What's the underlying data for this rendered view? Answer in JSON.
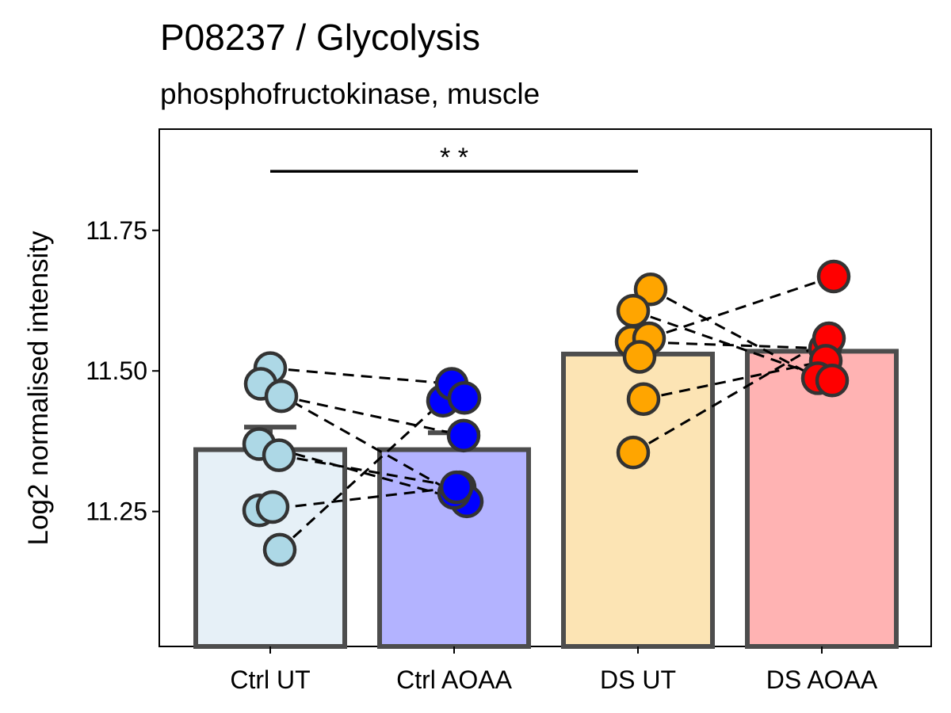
{
  "chart_data": {
    "type": "bar",
    "title": "P08237 / Glycolysis",
    "subtitle": "phosphofructokinase, muscle",
    "xlabel": "",
    "ylabel": "Log2 normalised intensity",
    "ylim": [
      11.01,
      11.93
    ],
    "yticks": [
      11.25,
      11.5,
      11.75
    ],
    "ytick_labels": [
      "11.25",
      "11.50",
      "11.75"
    ],
    "grid": false,
    "categories": [
      "Ctrl UT",
      "Ctrl AOAA",
      "DS UT",
      "DS AOAA"
    ],
    "values": [
      11.36,
      11.36,
      11.53,
      11.535
    ],
    "error_upper": [
      11.4,
      11.39,
      null,
      null
    ],
    "bar_colors": [
      "#e6f0f7",
      "#b3b3ff",
      "#fce4b4",
      "#ffb3b3"
    ],
    "point_colors": [
      "#add8e6",
      "#0000ff",
      "#ffa500",
      "#ff0000"
    ],
    "points": [
      [
        {
          "x": 0.0,
          "y": 11.505
        },
        {
          "x": -0.12,
          "y": 11.477
        },
        {
          "x": 0.14,
          "y": 11.455
        },
        {
          "x": -0.14,
          "y": 11.37
        },
        {
          "x": 0.11,
          "y": 11.35
        },
        {
          "x": -0.14,
          "y": 11.252
        },
        {
          "x": 0.03,
          "y": 11.258
        },
        {
          "x": 0.12,
          "y": 11.182
        }
      ],
      [
        {
          "x": -0.14,
          "y": 11.447
        },
        {
          "x": -0.03,
          "y": 11.477
        },
        {
          "x": 0.13,
          "y": 11.452
        },
        {
          "x": 0.12,
          "y": 11.385
        },
        {
          "x": 0.07,
          "y": 11.293
        },
        {
          "x": 0.16,
          "y": 11.268
        },
        {
          "x": 0.0,
          "y": 11.283
        },
        {
          "x": 0.03,
          "y": 11.293
        }
      ],
      [
        {
          "x": 0.16,
          "y": 11.645
        },
        {
          "x": -0.06,
          "y": 11.607
        },
        {
          "x": -0.08,
          "y": 11.552
        },
        {
          "x": 0.14,
          "y": 11.558
        },
        {
          "x": 0.02,
          "y": 11.525
        },
        {
          "x": 0.07,
          "y": 11.45
        },
        {
          "x": -0.06,
          "y": 11.355
        }
      ],
      [
        {
          "x": 0.15,
          "y": 11.668
        },
        {
          "x": 0.04,
          "y": 11.54
        },
        {
          "x": 0.09,
          "y": 11.558
        },
        {
          "x": 0.05,
          "y": 11.518
        },
        {
          "x": -0.05,
          "y": 11.487
        },
        {
          "x": 0.13,
          "y": 11.483
        }
      ]
    ],
    "paired_lines": [
      [
        [
          0,
          0
        ],
        [
          1,
          1
        ]
      ],
      [
        [
          0,
          1
        ],
        [
          1,
          6
        ]
      ],
      [
        [
          0,
          2
        ],
        [
          1,
          3
        ]
      ],
      [
        [
          0,
          3
        ],
        [
          1,
          5
        ]
      ],
      [
        [
          0,
          4
        ],
        [
          1,
          4
        ]
      ],
      [
        [
          0,
          5
        ],
        [
          1,
          7
        ]
      ],
      [
        [
          0,
          7
        ],
        [
          1,
          0
        ]
      ],
      [
        [
          2,
          0
        ],
        [
          3,
          4
        ]
      ],
      [
        [
          2,
          1
        ],
        [
          3,
          5
        ]
      ],
      [
        [
          2,
          2
        ],
        [
          3,
          1
        ]
      ],
      [
        [
          2,
          3
        ],
        [
          3,
          0
        ]
      ],
      [
        [
          2,
          5
        ],
        [
          3,
          3
        ]
      ],
      [
        [
          2,
          6
        ],
        [
          3,
          2
        ]
      ]
    ],
    "significance": [
      {
        "from": "Ctrl UT",
        "to": "DS UT",
        "label": "* *",
        "y": 11.855
      }
    ]
  }
}
